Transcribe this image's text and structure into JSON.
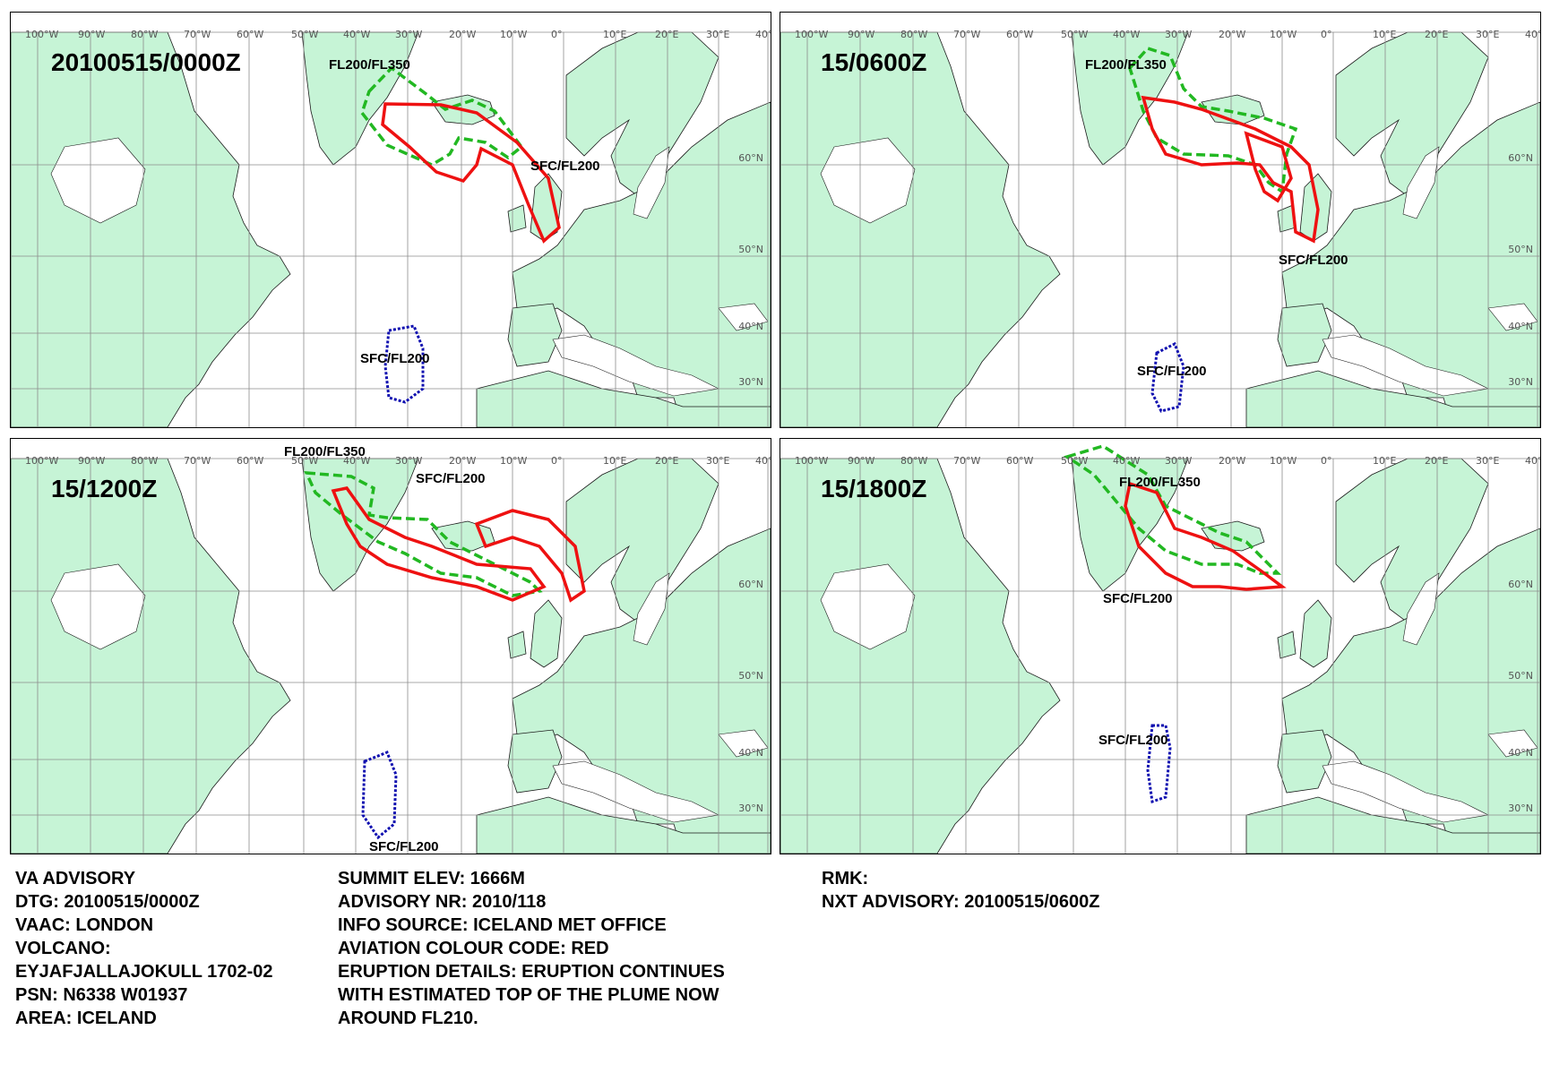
{
  "colors": {
    "land": "#c6f4d6",
    "coast": "#1a1a1a",
    "grid": "#8c8c8c",
    "red": "#ee1111",
    "green": "#22b822",
    "blue": "#1010b0"
  },
  "lon_labels": [
    "100°W",
    "90°W",
    "80°W",
    "70°W",
    "60°W",
    "50°W",
    "40°W",
    "30°W",
    "20°W",
    "10°W",
    "0°",
    "10°E",
    "20°E",
    "30°E",
    "40°E"
  ],
  "lat_labels": [
    "60°N",
    "50°N",
    "40°N",
    "30°N"
  ],
  "panels": [
    {
      "time": "20100515/0000Z",
      "labels": {
        "fl200_fl350": "FL200/FL350",
        "sfc_fl200_red": "SFC/FL200",
        "sfc_fl200_blue": "SFC/FL200"
      }
    },
    {
      "time": "15/0600Z",
      "labels": {
        "fl200_fl350": "FL200/FL350",
        "sfc_fl200_red": "SFC/FL200",
        "sfc_fl200_blue": "SFC/FL200"
      }
    },
    {
      "time": "15/1200Z",
      "labels": {
        "fl200_fl350": "FL200/FL350",
        "sfc_fl200_red": "SFC/FL200",
        "sfc_fl200_blue": "SFC/FL200"
      }
    },
    {
      "time": "15/1800Z",
      "labels": {
        "fl200_fl350": "FL200/FL350",
        "sfc_fl200_red": "SFC/FL200",
        "sfc_fl200_blue": "SFC/FL200"
      }
    }
  ],
  "advisory": {
    "col1": [
      "VA ADVISORY",
      "DTG:  20100515/0000Z",
      "VAAC:  LONDON",
      "VOLCANO:",
      "EYJAFJALLAJOKULL 1702-02",
      "PSN:  N6338 W01937",
      "AREA:  ICELAND"
    ],
    "col2": [
      "SUMMIT ELEV:  1666M",
      "ADVISORY NR:  2010/118",
      "INFO SOURCE:  ICELAND MET OFFICE",
      "AVIATION COLOUR CODE:  RED",
      "ERUPTION DETAILS:  ERUPTION CONTINUES",
      "WITH ESTIMATED TOP OF THE PLUME NOW",
      "AROUND FL210."
    ],
    "col3": [
      "RMK:",
      "NXT ADVISORY:  20100515/0600Z"
    ]
  }
}
